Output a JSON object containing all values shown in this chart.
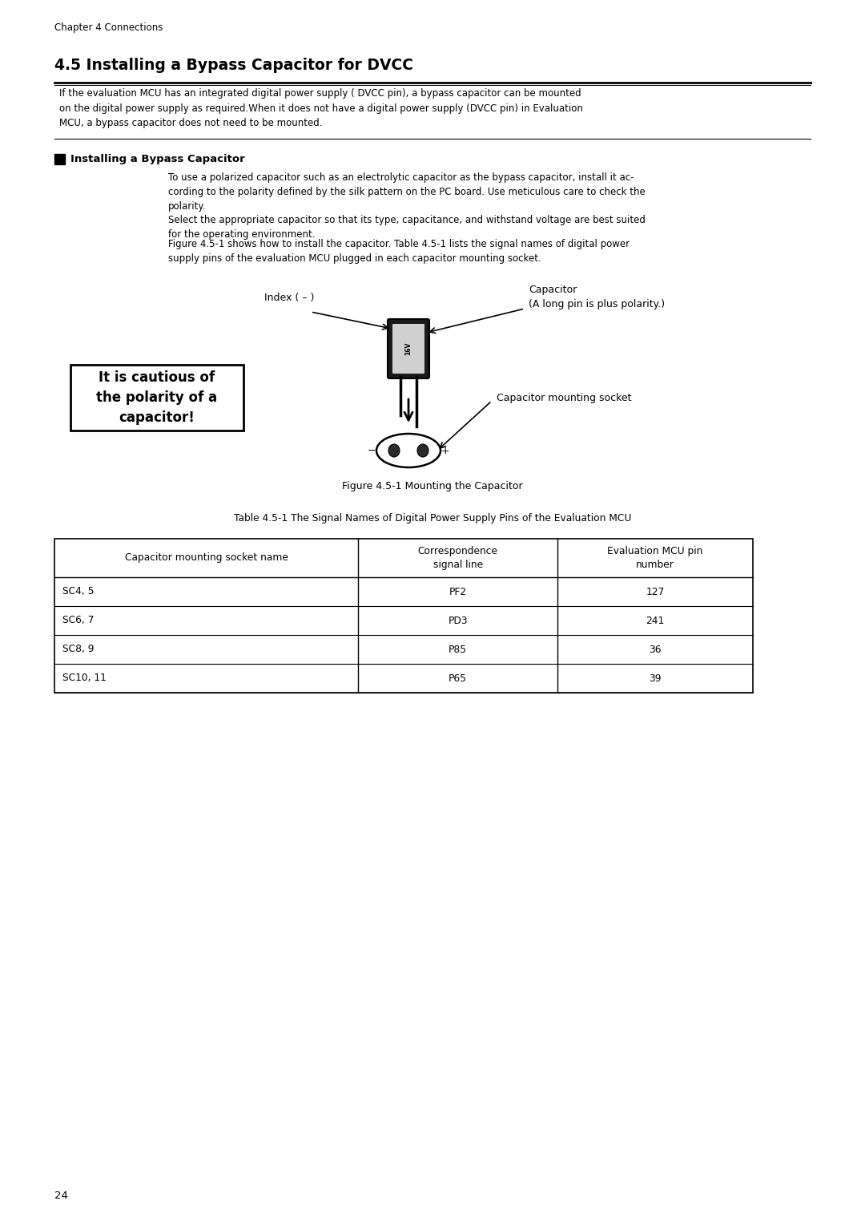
{
  "page_header": "Chapter 4 Connections",
  "section_title": "4.5 Installing a Bypass Capacitor for DVCC",
  "intro_text": "If the evaluation MCU has an integrated digital power supply ( DVCC pin), a bypass capacitor can be mounted\non the digital power supply as required.When it does not have a digital power supply (DVCC pin) in Evaluation\nMCU, a bypass capacitor does not need to be mounted.",
  "subsection_title": "Installing a Bypass Capacitor",
  "body_text1": "To use a polarized capacitor such as an electrolytic capacitor as the bypass capacitor, install it ac-\ncording to the polarity defined by the silk pattern on the PC board. Use meticulous care to check the\npolarity.",
  "body_text2": "Select the appropriate capacitor so that its type, capacitance, and withstand voltage are best suited\nfor the operating environment.",
  "body_text3": "Figure 4.5-1 shows how to install the capacitor. Table 4.5-1 lists the signal names of digital power\nsupply pins of the evaluation MCU plugged in each capacitor mounting socket.",
  "label_index": "Index ( – )",
  "label_capacitor": "Capacitor",
  "label_capacitor_sub": "(A long pin is plus polarity.)",
  "label_socket": "Capacitor mounting socket",
  "warning_text": "It is cautious of\nthe polarity of a\ncapacitor!",
  "figure_caption": "Figure 4.5-1 Mounting the Capacitor",
  "table_caption": "Table 4.5-1 The Signal Names of Digital Power Supply Pins of the Evaluation MCU",
  "table_headers": [
    "Capacitor mounting socket name",
    "Correspondence\nsignal line",
    "Evaluation MCU pin\nnumber"
  ],
  "table_rows": [
    [
      "SC4, 5",
      "PF2",
      "127"
    ],
    [
      "SC6, 7",
      "PD3",
      "241"
    ],
    [
      "SC8, 9",
      "P85",
      "36"
    ],
    [
      "SC10, 11",
      "P65",
      "39"
    ]
  ],
  "page_number": "24",
  "bg_color": "#ffffff",
  "text_color": "#000000"
}
